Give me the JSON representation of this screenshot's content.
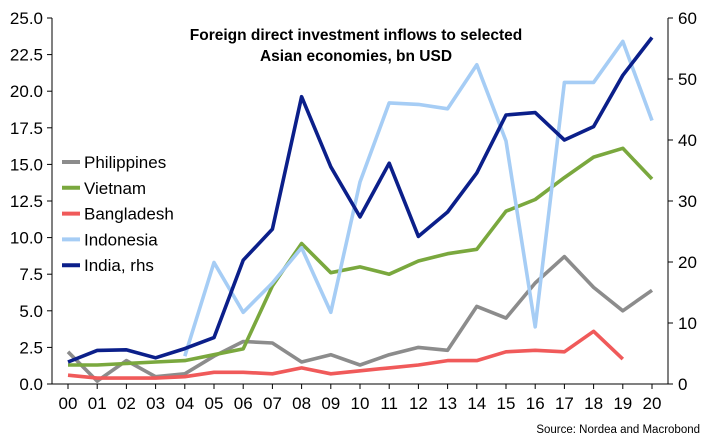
{
  "chart_data": {
    "type": "line",
    "title_lines": [
      "Foreign direct investment inflows to selected",
      "Asian economies, bn USD"
    ],
    "source": "Source: Nordea and Macrobond",
    "categories": [
      "00",
      "01",
      "02",
      "03",
      "04",
      "05",
      "06",
      "07",
      "08",
      "09",
      "10",
      "11",
      "12",
      "13",
      "14",
      "15",
      "16",
      "17",
      "18",
      "19",
      "20"
    ],
    "y_left": {
      "min": 0,
      "max": 25,
      "ticks": [
        "0.0",
        "2.5",
        "5.0",
        "7.5",
        "10.0",
        "12.5",
        "15.0",
        "17.5",
        "20.0",
        "22.5",
        "25.0"
      ]
    },
    "y_right": {
      "min": 0,
      "max": 60,
      "ticks": [
        "0",
        "10",
        "20",
        "30",
        "40",
        "50",
        "60"
      ]
    },
    "grid": false,
    "legend_position": "left",
    "series": [
      {
        "name": "Philippines",
        "color": "#8c8c8c",
        "axis": "left",
        "values": [
          2.2,
          0.2,
          1.6,
          0.5,
          0.7,
          1.9,
          2.9,
          2.8,
          1.5,
          2.0,
          1.3,
          2.0,
          2.5,
          2.3,
          5.3,
          4.5,
          6.9,
          8.7,
          6.6,
          5.0,
          6.4
        ]
      },
      {
        "name": "Vietnam",
        "color": "#7aa83e",
        "axis": "left",
        "values": [
          1.3,
          1.3,
          1.4,
          1.5,
          1.6,
          2.0,
          2.4,
          6.7,
          9.6,
          7.6,
          8.0,
          7.5,
          8.4,
          8.9,
          9.2,
          11.8,
          12.6,
          14.1,
          15.5,
          16.1,
          14.0
        ]
      },
      {
        "name": "Bangladesh",
        "color": "#f05a5a",
        "axis": "left",
        "values": [
          0.6,
          0.4,
          0.4,
          0.4,
          0.5,
          0.8,
          0.8,
          0.7,
          1.1,
          0.7,
          0.9,
          1.1,
          1.3,
          1.6,
          1.6,
          2.2,
          2.3,
          2.2,
          3.6,
          1.7,
          null
        ]
      },
      {
        "name": "Indonesia",
        "color": "#a6cdf5",
        "axis": "left",
        "values": [
          null,
          null,
          null,
          null,
          1.9,
          8.3,
          4.9,
          6.9,
          9.3,
          4.9,
          13.8,
          19.2,
          19.1,
          18.8,
          21.8,
          16.6,
          3.9,
          20.6,
          20.6,
          23.4,
          18.0
        ]
      },
      {
        "name": "India, rhs",
        "color": "#0b1f8a",
        "axis": "right",
        "values": [
          3.6,
          5.5,
          5.6,
          4.3,
          5.8,
          7.6,
          20.3,
          25.4,
          47.1,
          35.6,
          27.4,
          36.2,
          24.2,
          28.2,
          34.6,
          44.1,
          44.5,
          40.0,
          42.2,
          50.6,
          56.8
        ]
      }
    ]
  }
}
